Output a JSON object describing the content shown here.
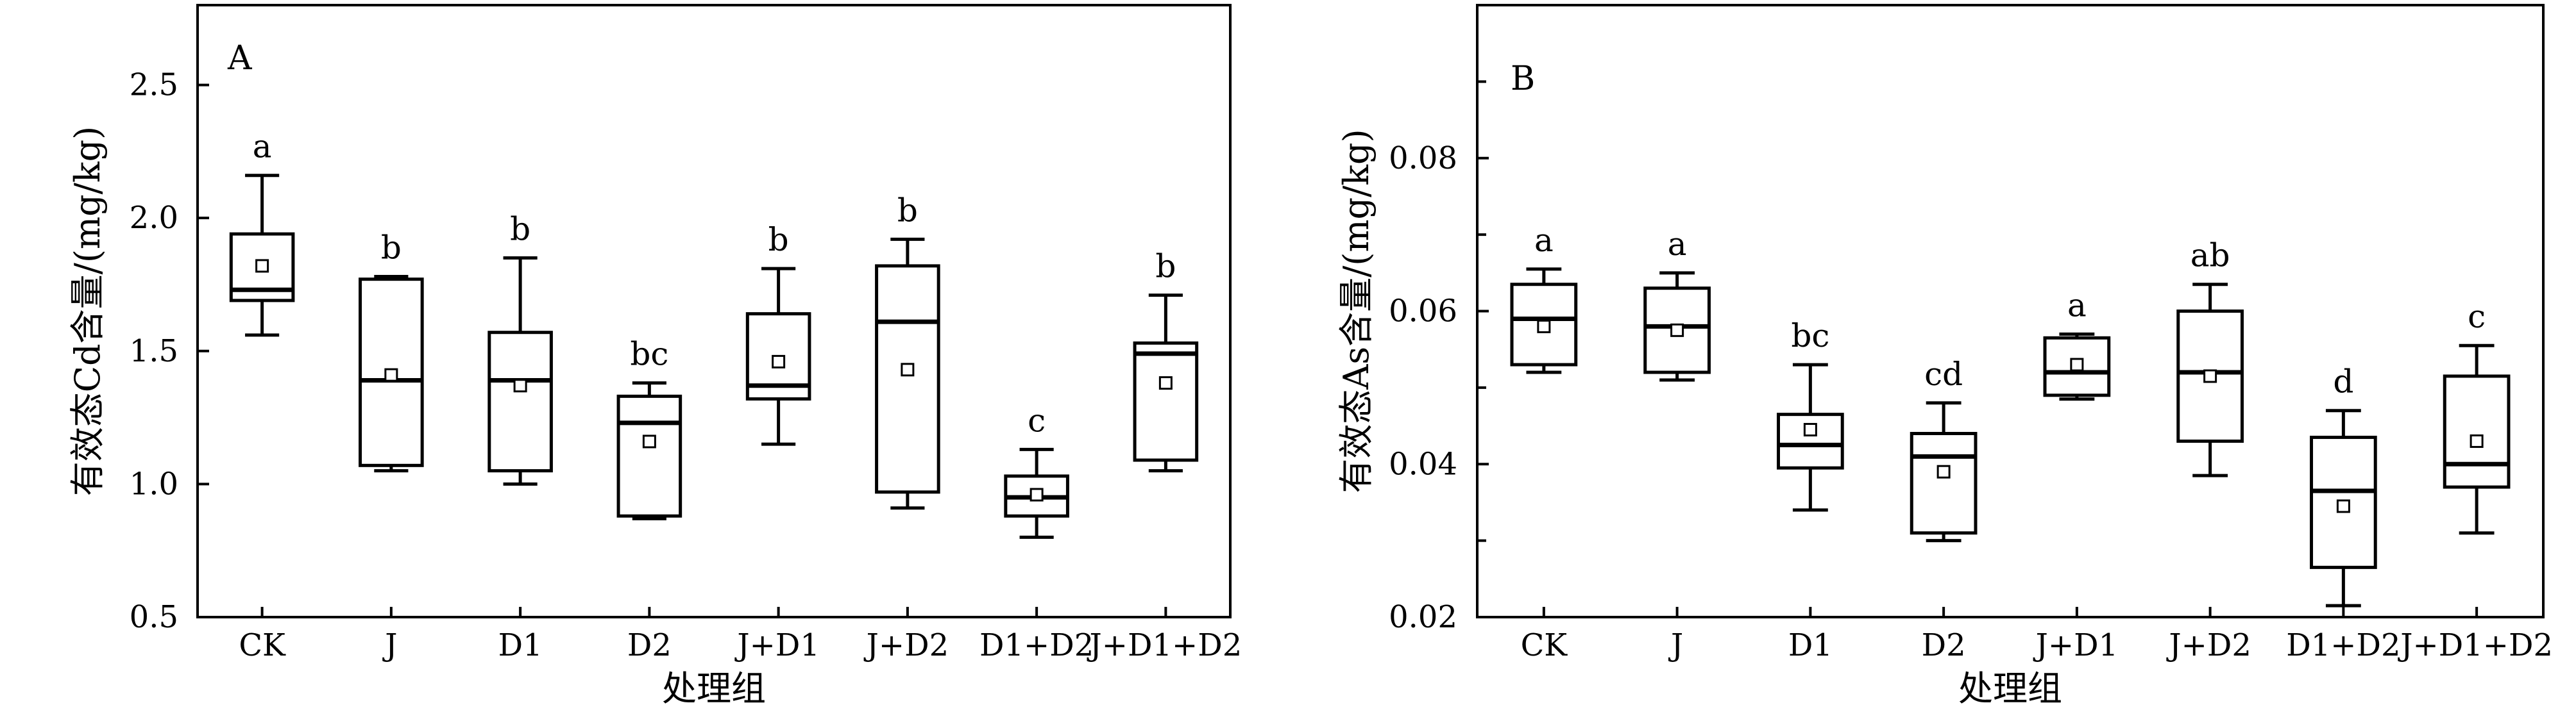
{
  "chart_data": [
    {
      "type": "boxplot",
      "panel_label": "A",
      "xlabel": "处理组",
      "ylabel": "有效态Cd含量/(mg/kg)",
      "ylim": [
        0.5,
        2.8
      ],
      "yticks": [
        "0.5",
        "1.0",
        "1.5",
        "2.0",
        "2.5"
      ],
      "ytick_values": [
        0.5,
        1.0,
        1.5,
        2.0,
        2.5
      ],
      "categories": [
        "CK",
        "J",
        "D1",
        "D2",
        "J+D1",
        "J+D2",
        "D1+D2",
        "J+D1+D2"
      ],
      "boxes": [
        {
          "min": 1.56,
          "q1": 1.69,
          "median": 1.73,
          "q3": 1.94,
          "max": 2.16,
          "mean": 1.82,
          "letter": "a"
        },
        {
          "min": 1.05,
          "q1": 1.07,
          "median": 1.39,
          "q3": 1.77,
          "max": 1.78,
          "mean": 1.41,
          "letter": "b"
        },
        {
          "min": 1.0,
          "q1": 1.05,
          "median": 1.39,
          "q3": 1.57,
          "max": 1.85,
          "mean": 1.37,
          "letter": "b"
        },
        {
          "min": 0.87,
          "q1": 0.88,
          "median": 1.23,
          "q3": 1.33,
          "max": 1.38,
          "mean": 1.16,
          "letter": "bc"
        },
        {
          "min": 1.15,
          "q1": 1.32,
          "median": 1.37,
          "q3": 1.64,
          "max": 1.81,
          "mean": 1.46,
          "letter": "b"
        },
        {
          "min": 0.91,
          "q1": 0.97,
          "median": 1.61,
          "q3": 1.82,
          "max": 1.92,
          "mean": 1.43,
          "letter": "b"
        },
        {
          "min": 0.8,
          "q1": 0.88,
          "median": 0.95,
          "q3": 1.03,
          "max": 1.13,
          "mean": 0.96,
          "letter": "c"
        },
        {
          "min": 1.05,
          "q1": 1.09,
          "median": 1.49,
          "q3": 1.53,
          "max": 1.71,
          "mean": 1.38,
          "letter": "b"
        }
      ]
    },
    {
      "type": "boxplot",
      "panel_label": "B",
      "xlabel": "处理组",
      "ylabel": "有效态As含量/(mg/kg)",
      "ylim": [
        0.02,
        0.1
      ],
      "yticks": [
        "0.02",
        "0.04",
        "0.06",
        "0.08"
      ],
      "ytick_values": [
        0.02,
        0.04,
        0.06,
        0.08
      ],
      "minor_ticks": [
        0.03,
        0.05,
        0.07,
        0.09
      ],
      "categories": [
        "CK",
        "J",
        "D1",
        "D2",
        "J+D1",
        "J+D2",
        "D1+D2",
        "J+D1+D2"
      ],
      "boxes": [
        {
          "min": 0.052,
          "q1": 0.053,
          "median": 0.059,
          "q3": 0.0635,
          "max": 0.0655,
          "mean": 0.058,
          "letter": "a"
        },
        {
          "min": 0.051,
          "q1": 0.052,
          "median": 0.058,
          "q3": 0.063,
          "max": 0.065,
          "mean": 0.0575,
          "letter": "a"
        },
        {
          "min": 0.034,
          "q1": 0.0395,
          "median": 0.0425,
          "q3": 0.0465,
          "max": 0.053,
          "mean": 0.0445,
          "letter": "bc"
        },
        {
          "min": 0.03,
          "q1": 0.031,
          "median": 0.041,
          "q3": 0.044,
          "max": 0.048,
          "mean": 0.039,
          "letter": "cd"
        },
        {
          "min": 0.0485,
          "q1": 0.049,
          "median": 0.052,
          "q3": 0.0565,
          "max": 0.057,
          "mean": 0.053,
          "letter": "a"
        },
        {
          "min": 0.0385,
          "q1": 0.043,
          "median": 0.052,
          "q3": 0.06,
          "max": 0.0635,
          "mean": 0.0515,
          "letter": "ab"
        },
        {
          "min": 0.0215,
          "q1": 0.0265,
          "median": 0.0365,
          "q3": 0.0435,
          "max": 0.047,
          "mean": 0.0345,
          "letter": "d"
        },
        {
          "min": 0.031,
          "q1": 0.037,
          "median": 0.04,
          "q3": 0.0515,
          "max": 0.0555,
          "mean": 0.043,
          "letter": "c"
        }
      ]
    }
  ]
}
